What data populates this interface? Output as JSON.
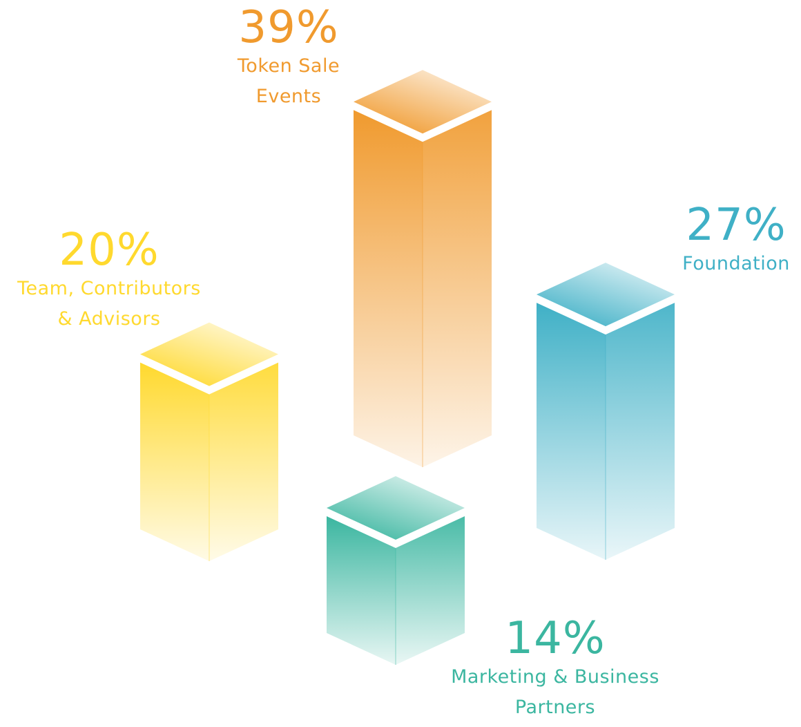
{
  "chart_data": {
    "type": "bar",
    "categories": [
      "Team, Contributors & Advisors",
      "Token Sale Events",
      "Marketing & Business Partners",
      "Foundation"
    ],
    "values": [
      20,
      39,
      14,
      27
    ],
    "value_labels": [
      "20%",
      "39%",
      "14%",
      "27%"
    ],
    "category_labels": [
      "Team, Contributors\n& Advisors",
      "Token Sale\nEvents",
      "Marketing & Business\nPartners",
      "Foundation"
    ],
    "colors": [
      "#FFD92E",
      "#F09A2E",
      "#3BB6A0",
      "#3FB0C6"
    ],
    "unit": "%",
    "style": "3d-isometric-columns"
  }
}
